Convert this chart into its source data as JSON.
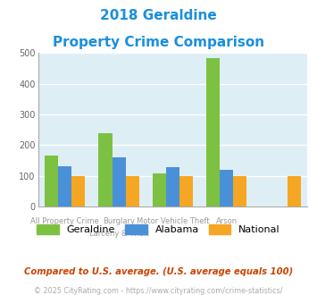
{
  "title_line1": "2018 Geraldine",
  "title_line2": "Property Crime Comparison",
  "title_color": "#1a8fdd",
  "series": {
    "Geraldine": [
      165,
      240,
      107,
      485,
      0
    ],
    "Alabama": [
      130,
      160,
      127,
      120,
      0
    ],
    "National": [
      100,
      100,
      100,
      100,
      100
    ]
  },
  "colors": {
    "Geraldine": "#7dc142",
    "Alabama": "#4a90d9",
    "National": "#f5a623"
  },
  "ylim": [
    0,
    500
  ],
  "yticks": [
    0,
    100,
    200,
    300,
    400,
    500
  ],
  "background_color": "#ddeef5",
  "grid_color": "#ffffff",
  "row1_labels": [
    "All Property Crime",
    "Burglary",
    "Motor Vehicle Theft",
    "Arson"
  ],
  "row2_labels": [
    "",
    "Larceny & Theft",
    "",
    ""
  ],
  "note": "Compared to U.S. average. (U.S. average equals 100)",
  "note_color": "#cc4400",
  "copyright": "© 2025 CityRating.com - https://www.cityrating.com/crime-statistics/",
  "copyright_color": "#aaaaaa",
  "copyright_link_color": "#4a90d9"
}
